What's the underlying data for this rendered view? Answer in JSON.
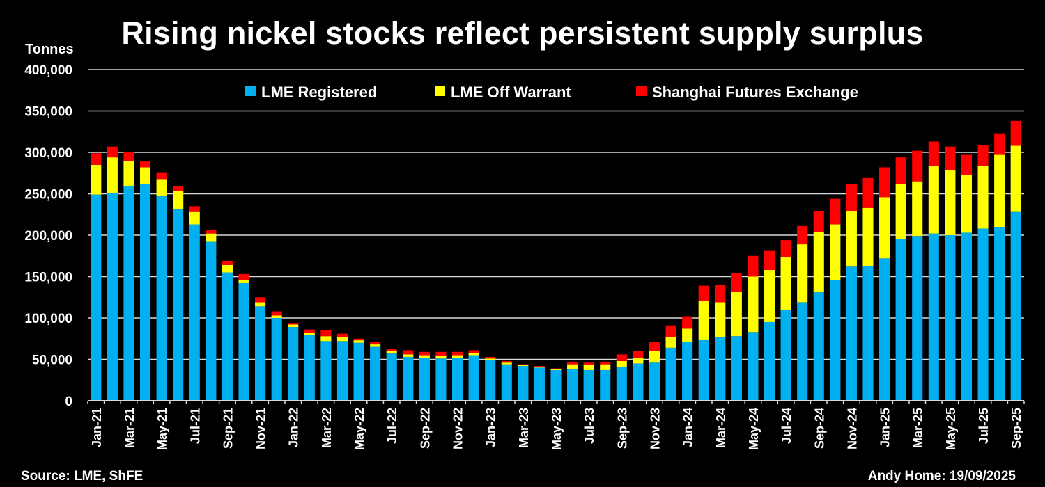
{
  "chart_data": {
    "type": "bar",
    "stacked": true,
    "title": "Rising nickel stocks reflect persistent supply surplus",
    "ylabel": "Tonnes",
    "ylim": [
      0,
      400000
    ],
    "yticks": [
      0,
      50000,
      100000,
      150000,
      200000,
      250000,
      300000,
      350000,
      400000
    ],
    "ytick_labels": [
      "0",
      "50,000",
      "100,000",
      "150,000",
      "200,000",
      "250,000",
      "300,000",
      "350,000",
      "400,000"
    ],
    "legend_position": "top",
    "categories": [
      "Jan-21",
      "Feb-21",
      "Mar-21",
      "Apr-21",
      "May-21",
      "Jun-21",
      "Jul-21",
      "Aug-21",
      "Sep-21",
      "Oct-21",
      "Nov-21",
      "Dec-21",
      "Jan-22",
      "Feb-22",
      "Mar-22",
      "Apr-22",
      "May-22",
      "Jun-22",
      "Jul-22",
      "Aug-22",
      "Sep-22",
      "Oct-22",
      "Nov-22",
      "Dec-22",
      "Jan-23",
      "Feb-23",
      "Mar-23",
      "Apr-23",
      "May-23",
      "Jun-23",
      "Jul-23",
      "Aug-23",
      "Sep-23",
      "Oct-23",
      "Nov-23",
      "Dec-23",
      "Jan-24",
      "Feb-24",
      "Mar-24",
      "Apr-24",
      "May-24",
      "Jun-24",
      "Jul-24",
      "Aug-24",
      "Sep-24",
      "Oct-24",
      "Nov-24",
      "Dec-24",
      "Jan-25",
      "Feb-25",
      "Mar-25",
      "Apr-25",
      "May-25",
      "Jun-25",
      "Jul-25",
      "Aug-25",
      "Sep-25"
    ],
    "x_tick_labels": [
      "Jan-21",
      "Mar-21",
      "May-21",
      "Jul-21",
      "Sep-21",
      "Nov-21",
      "Jan-22",
      "Mar-22",
      "May-22",
      "Jul-22",
      "Sep-22",
      "Nov-22",
      "Jan-23",
      "Mar-23",
      "May-23",
      "Jul-23",
      "Sep-23",
      "Nov-23",
      "Jan-24",
      "Mar-24",
      "May-24",
      "Jul-24",
      "Sep-24",
      "Nov-24",
      "Jan-25",
      "Mar-25",
      "May-25",
      "Jul-25",
      "Sep-25"
    ],
    "series": [
      {
        "name": "LME Registered",
        "color": "#00B0F0",
        "values": [
          249000,
          251000,
          259000,
          262000,
          247000,
          231000,
          213000,
          192000,
          155000,
          142000,
          114000,
          100000,
          89000,
          79000,
          72000,
          72000,
          70000,
          65000,
          57000,
          53000,
          52000,
          51000,
          52000,
          55000,
          49000,
          44000,
          42000,
          40000,
          37000,
          38000,
          37000,
          37000,
          41000,
          45000,
          46000,
          64000,
          71000,
          74000,
          77000,
          78000,
          83000,
          95000,
          110000,
          119000,
          131000,
          146000,
          162000,
          163000,
          172000,
          195000,
          199000,
          202000,
          200000,
          203000,
          208000,
          210000,
          228000
        ]
      },
      {
        "name": "LME Off Warrant",
        "color": "#FFFF00",
        "values": [
          36000,
          43000,
          31000,
          20000,
          20000,
          22000,
          15000,
          10000,
          9000,
          4000,
          5000,
          3000,
          3000,
          3000,
          6000,
          5000,
          3000,
          3000,
          3000,
          3000,
          3000,
          3000,
          3000,
          3000,
          2000,
          2000,
          1000,
          1000,
          1000,
          6000,
          6000,
          7000,
          7000,
          7000,
          14000,
          13000,
          16000,
          47000,
          42000,
          54000,
          67000,
          63000,
          64000,
          70000,
          73000,
          67000,
          67000,
          70000,
          74000,
          67000,
          66000,
          82000,
          79000,
          70000,
          76000,
          87000,
          80000
        ]
      },
      {
        "name": "Shanghai Futures Exchange",
        "color": "#FF0000",
        "values": [
          14000,
          13000,
          10000,
          7000,
          9000,
          6000,
          7000,
          4000,
          5000,
          7000,
          6000,
          5000,
          2000,
          4000,
          7000,
          4000,
          2000,
          3000,
          3000,
          5000,
          4000,
          5000,
          4000,
          3000,
          2000,
          2000,
          1000,
          1000,
          1000,
          3000,
          3000,
          3000,
          8000,
          8000,
          11000,
          14000,
          15000,
          18000,
          21000,
          22000,
          25000,
          23000,
          20000,
          22000,
          25000,
          31000,
          33000,
          36000,
          36000,
          32000,
          37000,
          29000,
          28000,
          24000,
          25000,
          26000,
          30000
        ]
      }
    ]
  },
  "labels": {
    "title": "Rising nickel stocks reflect persistent supply surplus",
    "y_unit": "Tonnes",
    "source": "Source: LME, ShFE",
    "credit": "Andy Home: 19/09/2025"
  }
}
